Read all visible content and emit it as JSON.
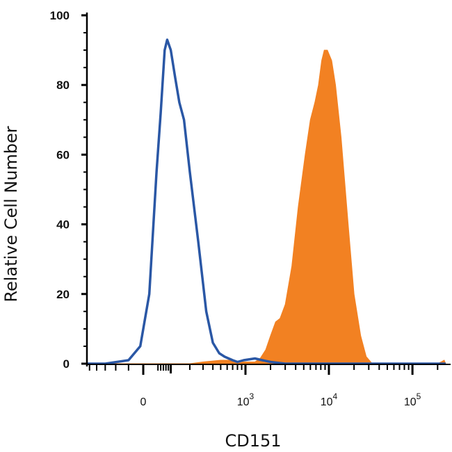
{
  "chart_data": {
    "type": "histogram",
    "xlabel": "CD151",
    "ylabel": "Relative Cell Number",
    "x_scale": "biexponential",
    "ylim": [
      0,
      100
    ],
    "y_ticks": [
      {
        "value": 0,
        "label": "0"
      },
      {
        "value": 20,
        "label": "20"
      },
      {
        "value": 40,
        "label": "40"
      },
      {
        "value": 60,
        "label": "60"
      },
      {
        "value": 80,
        "label": "80"
      },
      {
        "value": 100,
        "label": "100"
      }
    ],
    "x_ticks": [
      {
        "value": 0,
        "base": "0",
        "exp": ""
      },
      {
        "value": 1000,
        "base": "10",
        "exp": "3"
      },
      {
        "value": 10000,
        "base": "10",
        "exp": "4"
      },
      {
        "value": 100000,
        "base": "10",
        "exp": "5"
      }
    ],
    "series": [
      {
        "style": "outline",
        "color": "#2a57a5",
        "points": [
          [
            -2000,
            0
          ],
          [
            -150,
            0
          ],
          [
            -50,
            1
          ],
          [
            -10,
            5
          ],
          [
            20,
            20
          ],
          [
            45,
            55
          ],
          [
            60,
            72
          ],
          [
            75,
            90
          ],
          [
            85,
            93
          ],
          [
            100,
            90
          ],
          [
            120,
            82
          ],
          [
            140,
            75
          ],
          [
            165,
            70
          ],
          [
            200,
            55
          ],
          [
            260,
            35
          ],
          [
            330,
            15
          ],
          [
            400,
            6
          ],
          [
            480,
            3
          ],
          [
            560,
            2
          ],
          [
            700,
            1
          ],
          [
            800,
            0.5
          ],
          [
            950,
            1
          ],
          [
            1300,
            1.5
          ],
          [
            1600,
            1
          ],
          [
            2000,
            0.5
          ],
          [
            3000,
            0
          ],
          [
            250000,
            0
          ]
        ]
      },
      {
        "style": "fill",
        "color": "#f28122",
        "points": [
          [
            -2000,
            0
          ],
          [
            200,
            0
          ],
          [
            300,
            0.5
          ],
          [
            500,
            1
          ],
          [
            700,
            1
          ],
          [
            800,
            0.5
          ],
          [
            1000,
            0.5
          ],
          [
            1300,
            0.5
          ],
          [
            1500,
            1.5
          ],
          [
            1750,
            4
          ],
          [
            2000,
            8
          ],
          [
            2300,
            12
          ],
          [
            2600,
            13
          ],
          [
            3000,
            17
          ],
          [
            3600,
            28
          ],
          [
            4300,
            45
          ],
          [
            5200,
            60
          ],
          [
            6000,
            70
          ],
          [
            6800,
            75
          ],
          [
            7500,
            80
          ],
          [
            8200,
            87
          ],
          [
            8800,
            90
          ],
          [
            9600,
            90
          ],
          [
            10800,
            87
          ],
          [
            12000,
            80
          ],
          [
            14000,
            65
          ],
          [
            17000,
            40
          ],
          [
            20000,
            20
          ],
          [
            24000,
            8
          ],
          [
            28000,
            2
          ],
          [
            33000,
            0
          ],
          [
            200000,
            0
          ],
          [
            220000,
            0.5
          ],
          [
            240000,
            1
          ],
          [
            250000,
            0
          ]
        ]
      }
    ]
  }
}
